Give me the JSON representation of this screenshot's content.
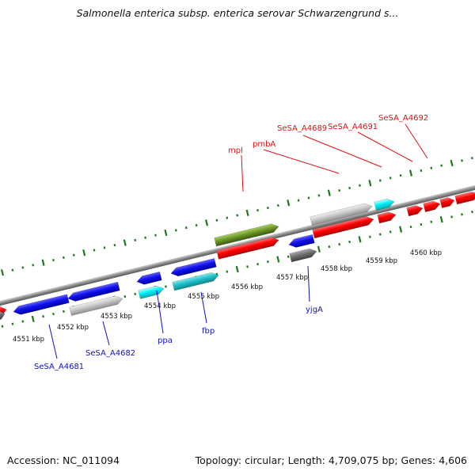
{
  "title": "Salmonella enterica subsp. enterica serovar Schwarzengrund s...",
  "footer": {
    "accession": "Accession: NC_011094",
    "info": "Topology: circular; Length: 4,709,075 bp; Genes: 4,606"
  },
  "colors": {
    "red": "#ff0000",
    "blue": "#1010ee",
    "cyan": "#00e8f0",
    "teal": "#20c0c8",
    "gray": "#c8c8c8",
    "darkgray": "#707070",
    "olive": "#6e9a28",
    "tick_green": "#1a7a1a",
    "forward_label": "#dd1111",
    "reverse_label": "#1111bb"
  },
  "scale_labels": [
    "4551 kbp",
    "4552 kbp",
    "4553 kbp",
    "4554 kbp",
    "4555 kbp",
    "4556 kbp",
    "4557 kbp",
    "4558 kbp",
    "4559 kbp",
    "4560 kbp"
  ],
  "forward_labels": [
    "mpl",
    "pmbA",
    "SeSA_A4689",
    "SeSA_A4691",
    "SeSA_A4692"
  ],
  "reverse_labels": [
    "SeSA_A4681",
    "SeSA_A4682",
    "ppa",
    "fbp",
    "yjgA"
  ]
}
